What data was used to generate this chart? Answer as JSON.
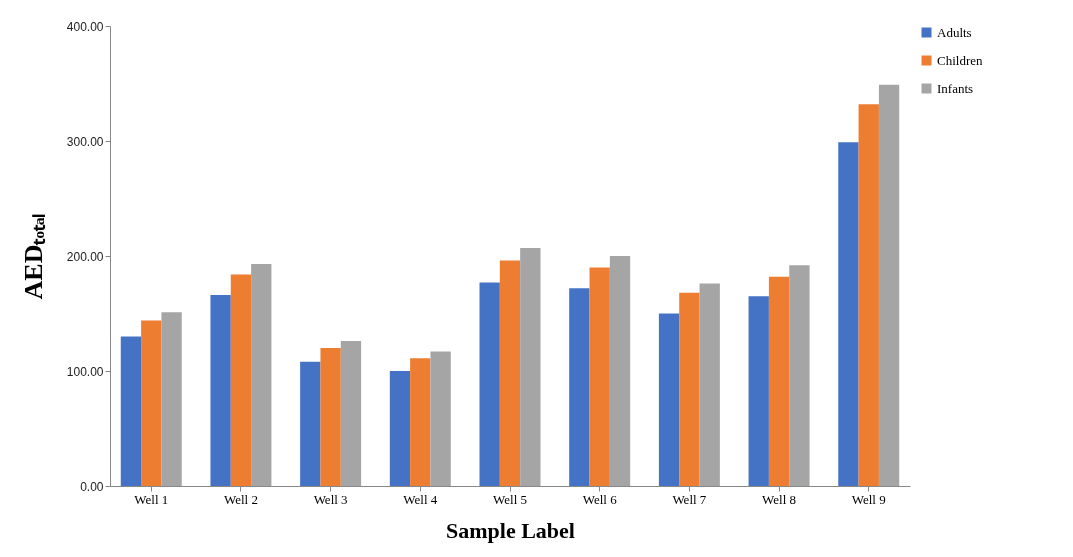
{
  "chart_data": {
    "type": "bar",
    "xlabel": "Sample Label",
    "ylabel": "AEDₜₒₜₐₗ",
    "categories": [
      "Well 1",
      "Well 2",
      "Well 3",
      "Well 4",
      "Well 5",
      "Well 6",
      "Well 7",
      "Well 8",
      "Well 9"
    ],
    "series": [
      {
        "name": "Adults",
        "color": "#4472c4",
        "values": [
          130,
          166,
          108,
          100,
          177,
          172,
          150,
          165,
          299
        ]
      },
      {
        "name": "Children",
        "color": "#ed7d31",
        "values": [
          144,
          184,
          120,
          111,
          196,
          190,
          168,
          182,
          332
        ]
      },
      {
        "name": "Infants",
        "color": "#a5a5a5",
        "values": [
          151,
          193,
          126,
          117,
          207,
          200,
          176,
          192,
          349
        ]
      }
    ],
    "ylim": [
      0,
      400
    ],
    "yticks": [
      {
        "value": 0,
        "label": "0.00"
      },
      {
        "value": 100,
        "label": "100.00"
      },
      {
        "value": 200,
        "label": "200.00"
      },
      {
        "value": 300,
        "label": "300.00"
      },
      {
        "value": 400,
        "label": "400.00"
      }
    ],
    "grid": false,
    "legend": "top right"
  }
}
